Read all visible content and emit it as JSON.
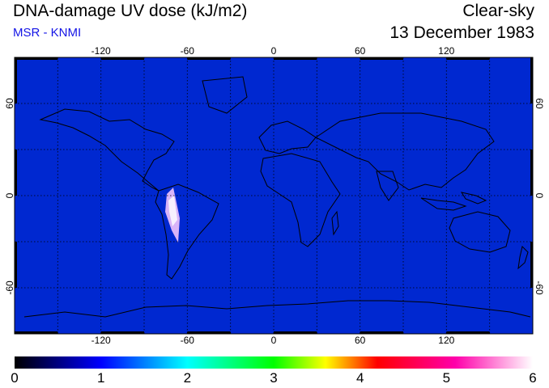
{
  "header": {
    "title": "DNA-damage UV dose (kJ/m2)",
    "source": "MSR - KNMI",
    "condition": "Clear-sky",
    "date": "13 December 1983"
  },
  "map": {
    "longitude_ticks": [
      "-120",
      "-60",
      "0",
      "60",
      "120"
    ],
    "latitude_ticks": [
      "60",
      "0",
      "-60"
    ],
    "projection": "equirectangular",
    "grid": "dotted 30 degree",
    "lon_range": [
      -180,
      180
    ],
    "lat_range": [
      -90,
      90
    ]
  },
  "colorbar": {
    "labels": [
      "0",
      "1",
      "2",
      "3",
      "4",
      "5",
      "6"
    ],
    "min": 0,
    "max": 6,
    "colors": [
      "#000000",
      "#0000ff",
      "#00ffff",
      "#00ff00",
      "#ffff00",
      "#ff0000",
      "#ff00aa",
      "#ffffff"
    ]
  },
  "colors": {
    "subtitle": "#1414e6",
    "frame": "#000000"
  }
}
